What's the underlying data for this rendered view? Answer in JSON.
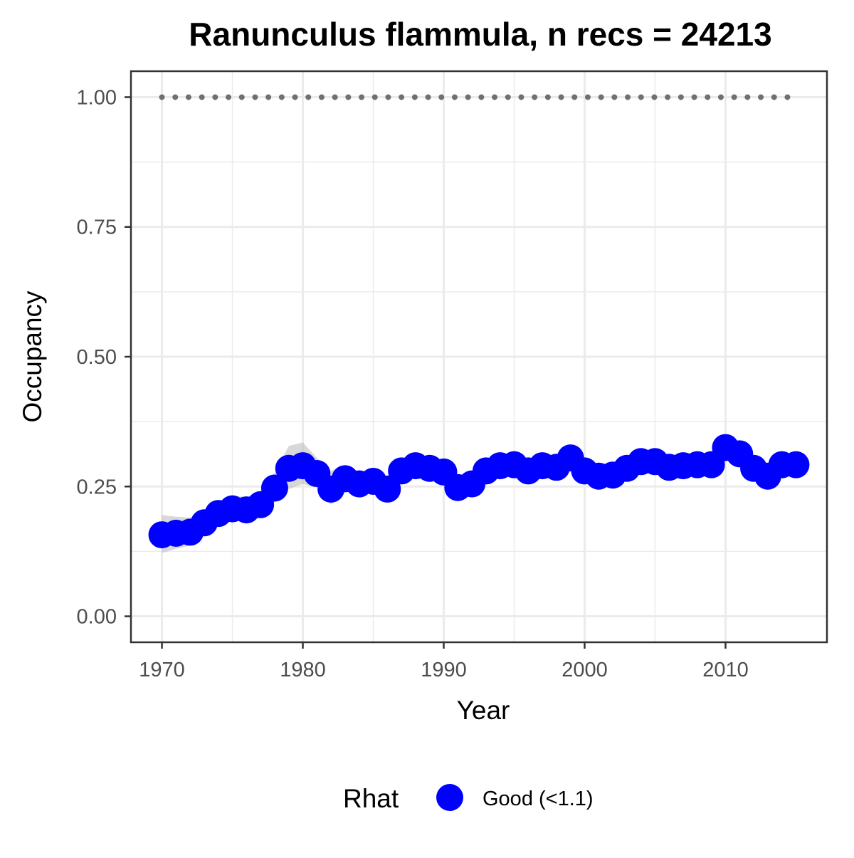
{
  "chart_data": {
    "type": "line",
    "title": "Ranunculus flammula, n recs = 24213",
    "xlabel": "Year",
    "ylabel": "Occupancy",
    "xlim": [
      1967.8,
      2017.2
    ],
    "ylim": [
      -0.05,
      1.05
    ],
    "x_ticks": [
      "1970",
      "1980",
      "1990",
      "2000",
      "2010"
    ],
    "y_ticks": [
      "0.00",
      "0.25",
      "0.50",
      "0.75",
      "1.00"
    ],
    "grid": true,
    "colors": {
      "points": "#0000ff",
      "ribbon": "#bebebe",
      "reference_line": "#707070",
      "grid": "#ebebeb",
      "panel_border": "#333333"
    },
    "reference_line": {
      "y": 1.0,
      "style": "dotted"
    },
    "x": [
      1970,
      1971,
      1972,
      1973,
      1974,
      1975,
      1976,
      1977,
      1978,
      1979,
      1980,
      1981,
      1982,
      1983,
      1984,
      1985,
      1986,
      1987,
      1988,
      1989,
      1990,
      1991,
      1992,
      1993,
      1994,
      1995,
      1996,
      1997,
      1998,
      1999,
      2000,
      2001,
      2002,
      2003,
      2004,
      2005,
      2006,
      2007,
      2008,
      2009,
      2010,
      2011,
      2012,
      2013,
      2014,
      2015
    ],
    "series": [
      {
        "values": [
          0.157,
          0.16,
          0.162,
          0.18,
          0.198,
          0.207,
          0.205,
          0.215,
          0.247,
          0.285,
          0.29,
          0.275,
          0.245,
          0.265,
          0.255,
          0.26,
          0.245,
          0.28,
          0.29,
          0.285,
          0.278,
          0.248,
          0.255,
          0.28,
          0.29,
          0.292,
          0.28,
          0.29,
          0.287,
          0.305,
          0.28,
          0.27,
          0.272,
          0.285,
          0.298,
          0.298,
          0.287,
          0.29,
          0.292,
          0.292,
          0.325,
          0.313,
          0.285,
          0.27,
          0.292,
          0.292
        ],
        "lower": [
          0.122,
          0.13,
          0.136,
          0.156,
          0.174,
          0.184,
          0.182,
          0.19,
          0.22,
          0.245,
          0.255,
          0.248,
          0.215,
          0.24,
          0.235,
          0.238,
          0.222,
          0.258,
          0.27,
          0.265,
          0.256,
          0.228,
          0.236,
          0.262,
          0.272,
          0.274,
          0.262,
          0.272,
          0.268,
          0.285,
          0.262,
          0.252,
          0.254,
          0.267,
          0.28,
          0.28,
          0.269,
          0.272,
          0.274,
          0.274,
          0.305,
          0.293,
          0.265,
          0.25,
          0.272,
          0.272
        ],
        "upper": [
          0.195,
          0.192,
          0.19,
          0.206,
          0.222,
          0.232,
          0.23,
          0.24,
          0.275,
          0.328,
          0.335,
          0.305,
          0.28,
          0.292,
          0.278,
          0.284,
          0.27,
          0.305,
          0.312,
          0.307,
          0.3,
          0.27,
          0.276,
          0.3,
          0.31,
          0.312,
          0.3,
          0.31,
          0.307,
          0.326,
          0.3,
          0.29,
          0.292,
          0.305,
          0.318,
          0.318,
          0.307,
          0.31,
          0.312,
          0.312,
          0.346,
          0.334,
          0.306,
          0.29,
          0.312,
          0.312
        ]
      }
    ],
    "legend": {
      "title": "Rhat",
      "entries": [
        {
          "label": "Good (<1.1)",
          "color": "#0000ff"
        }
      ],
      "position": "bottom"
    }
  }
}
